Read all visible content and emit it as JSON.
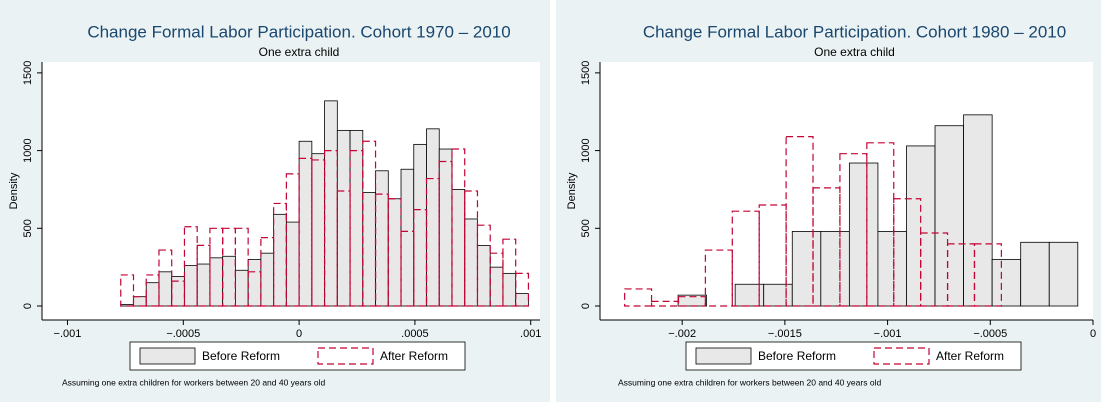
{
  "chart_data": [
    {
      "type": "histogram",
      "title": "Change Formal Labor Participation. Cohort 1970 – 2010",
      "subtitle": "One extra child",
      "y_label": "Density",
      "note": "Assuming one extra children for workers between 20 and 40 years old",
      "xlim": [
        -0.00111,
        0.00104
      ],
      "xticks": [
        {
          "value": -0.001,
          "label": "−.001"
        },
        {
          "value": -0.0005,
          "label": "−.0005"
        },
        0,
        {
          "value": 0.0005,
          "label": ".0005"
        },
        {
          "value": 0.001,
          "label": ".001"
        }
      ],
      "ylim": [
        -90,
        1570
      ],
      "yticks": [
        0,
        500,
        1000,
        1500
      ],
      "series": [
        {
          "name": "Before Reform",
          "color": "#e8e8e8",
          "bins": [
            -0.00077,
            -0.000715,
            -0.00066,
            -0.000605,
            -0.00055,
            -0.000495,
            -0.00044,
            -0.000385,
            -0.00033,
            -0.000275,
            -0.00022,
            -0.000165,
            -0.00011,
            -5.5e-05,
            0,
            5.5e-05,
            0.00011,
            0.000165,
            0.00022,
            0.000275,
            0.00033,
            0.000385,
            0.00044,
            0.000495,
            0.00055,
            0.000605,
            0.00066,
            0.000715,
            0.00077,
            0.000825,
            0.00088,
            0.000935,
            0.00099
          ],
          "values": [
            10,
            60,
            150,
            220,
            190,
            260,
            270,
            310,
            320,
            230,
            300,
            340,
            590,
            540,
            1060,
            980,
            1320,
            1130,
            1130,
            730,
            870,
            690,
            880,
            1040,
            1140,
            1010,
            750,
            560,
            390,
            250,
            210,
            80
          ]
        },
        {
          "name": "After Reform",
          "color": "#c10534",
          "bins": [
            -0.00077,
            -0.000715,
            -0.00066,
            -0.000605,
            -0.00055,
            -0.000495,
            -0.00044,
            -0.000385,
            -0.00033,
            -0.000275,
            -0.00022,
            -0.000165,
            -0.00011,
            -5.5e-05,
            0,
            5.5e-05,
            0.00011,
            0.000165,
            0.00022,
            0.000275,
            0.00033,
            0.000385,
            0.00044,
            0.000495,
            0.00055,
            0.000605,
            0.00066,
            0.000715,
            0.00077,
            0.000825,
            0.00088,
            0.000935,
            0.00099
          ],
          "values": [
            200,
            60,
            200,
            360,
            160,
            510,
            390,
            500,
            500,
            500,
            220,
            440,
            660,
            850,
            950,
            940,
            1000,
            740,
            1000,
            1060,
            720,
            690,
            480,
            620,
            820,
            930,
            1010,
            740,
            520,
            340,
            430,
            210
          ]
        }
      ]
    },
    {
      "type": "histogram",
      "title": "Change Formal Labor Participation. Cohort 1980 – 2010",
      "subtitle": "One extra child",
      "y_label": "Density",
      "note": "Assuming one extra children for workers between 20 and 40 years old",
      "xlim": [
        -0.0024,
        0
      ],
      "xticks": [
        {
          "value": -0.002,
          "label": "−.002"
        },
        {
          "value": -0.0015,
          "label": "−.0015"
        },
        {
          "value": -0.001,
          "label": "−.001"
        },
        {
          "value": -0.0005,
          "label": "−.0005"
        },
        0
      ],
      "ylim": [
        -90,
        1570
      ],
      "yticks": [
        0,
        500,
        1000,
        1500
      ],
      "series": [
        {
          "name": "Before Reform",
          "color": "#e8e8e8",
          "bins": [
            -0.00202,
            -0.001881,
            -0.001742,
            -0.001603,
            -0.001464,
            -0.001325,
            -0.001186,
            -0.001047,
            -0.000908,
            -0.000769,
            -0.00063,
            -0.000491,
            -0.000352,
            -0.000213,
            -7.4e-05
          ],
          "values": [
            70,
            0,
            140,
            140,
            480,
            480,
            920,
            480,
            1030,
            1160,
            1230,
            300,
            410,
            410
          ]
        },
        {
          "name": "After Reform",
          "color": "#c10534",
          "bins": [
            -0.00228,
            -0.002149,
            -0.002018,
            -0.001887,
            -0.001756,
            -0.001625,
            -0.001494,
            -0.001363,
            -0.001232,
            -0.001101,
            -0.00097,
            -0.000839,
            -0.000708,
            -0.000577,
            -0.000446
          ],
          "values": [
            110,
            30,
            60,
            360,
            610,
            650,
            1090,
            760,
            980,
            1050,
            690,
            470,
            400,
            400
          ]
        }
      ]
    }
  ]
}
